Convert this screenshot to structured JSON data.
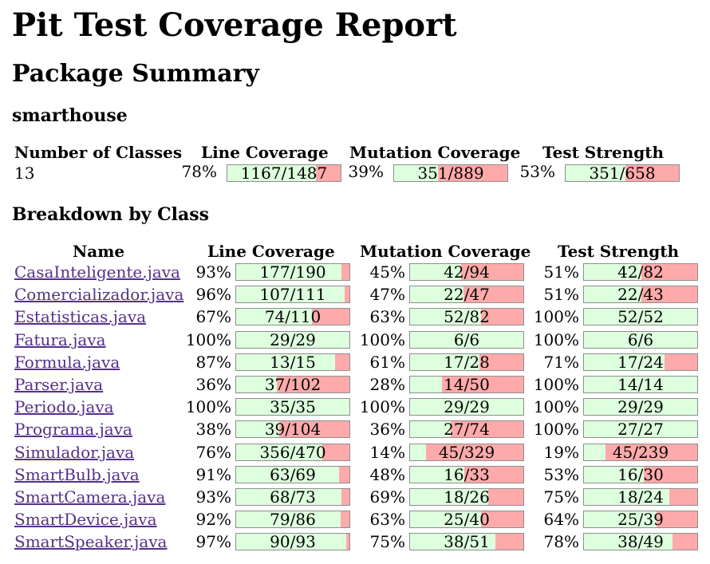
{
  "report_title": "Pit Test Coverage Report",
  "summary_title": "Package Summary",
  "package_name": "smarthouse",
  "breakdown_title": "Breakdown by Class",
  "summary": {
    "headers": {
      "classes": "Number of Classes",
      "line": "Line Coverage",
      "mutation": "Mutation Coverage",
      "strength": "Test Strength"
    },
    "classes": "13",
    "line": {
      "pct": "78%",
      "label": "1167/1487",
      "fraction": 0.78
    },
    "mutation": {
      "pct": "39%",
      "label": "351/889",
      "fraction": 0.39
    },
    "strength": {
      "pct": "53%",
      "label": "351/658",
      "fraction": 0.53
    }
  },
  "breakdown": {
    "headers": {
      "name": "Name",
      "line": "Line Coverage",
      "mutation": "Mutation Coverage",
      "strength": "Test Strength"
    },
    "rows": [
      {
        "name": "CasaInteligente.java",
        "line": {
          "pct": "93%",
          "label": "177/190",
          "fraction": 0.93
        },
        "mutation": {
          "pct": "45%",
          "label": "42/94",
          "fraction": 0.45
        },
        "strength": {
          "pct": "51%",
          "label": "42/82",
          "fraction": 0.51
        }
      },
      {
        "name": "Comercializador.java",
        "line": {
          "pct": "96%",
          "label": "107/111",
          "fraction": 0.96
        },
        "mutation": {
          "pct": "47%",
          "label": "22/47",
          "fraction": 0.47
        },
        "strength": {
          "pct": "51%",
          "label": "22/43",
          "fraction": 0.51
        }
      },
      {
        "name": "Estatisticas.java",
        "line": {
          "pct": "67%",
          "label": "74/110",
          "fraction": 0.67
        },
        "mutation": {
          "pct": "63%",
          "label": "52/82",
          "fraction": 0.63
        },
        "strength": {
          "pct": "100%",
          "label": "52/52",
          "fraction": 1.0
        }
      },
      {
        "name": "Fatura.java",
        "line": {
          "pct": "100%",
          "label": "29/29",
          "fraction": 1.0
        },
        "mutation": {
          "pct": "100%",
          "label": "6/6",
          "fraction": 1.0
        },
        "strength": {
          "pct": "100%",
          "label": "6/6",
          "fraction": 1.0
        }
      },
      {
        "name": "Formula.java",
        "line": {
          "pct": "87%",
          "label": "13/15",
          "fraction": 0.87
        },
        "mutation": {
          "pct": "61%",
          "label": "17/28",
          "fraction": 0.61
        },
        "strength": {
          "pct": "71%",
          "label": "17/24",
          "fraction": 0.71
        }
      },
      {
        "name": "Parser.java",
        "line": {
          "pct": "36%",
          "label": "37/102",
          "fraction": 0.36
        },
        "mutation": {
          "pct": "28%",
          "label": "14/50",
          "fraction": 0.28
        },
        "strength": {
          "pct": "100%",
          "label": "14/14",
          "fraction": 1.0
        }
      },
      {
        "name": "Periodo.java",
        "line": {
          "pct": "100%",
          "label": "35/35",
          "fraction": 1.0
        },
        "mutation": {
          "pct": "100%",
          "label": "29/29",
          "fraction": 1.0
        },
        "strength": {
          "pct": "100%",
          "label": "29/29",
          "fraction": 1.0
        }
      },
      {
        "name": "Programa.java",
        "line": {
          "pct": "38%",
          "label": "39/104",
          "fraction": 0.38
        },
        "mutation": {
          "pct": "36%",
          "label": "27/74",
          "fraction": 0.36
        },
        "strength": {
          "pct": "100%",
          "label": "27/27",
          "fraction": 1.0
        }
      },
      {
        "name": "Simulador.java",
        "line": {
          "pct": "76%",
          "label": "356/470",
          "fraction": 0.76
        },
        "mutation": {
          "pct": "14%",
          "label": "45/329",
          "fraction": 0.14
        },
        "strength": {
          "pct": "19%",
          "label": "45/239",
          "fraction": 0.19
        }
      },
      {
        "name": "SmartBulb.java",
        "line": {
          "pct": "91%",
          "label": "63/69",
          "fraction": 0.91
        },
        "mutation": {
          "pct": "48%",
          "label": "16/33",
          "fraction": 0.48
        },
        "strength": {
          "pct": "53%",
          "label": "16/30",
          "fraction": 0.53
        }
      },
      {
        "name": "SmartCamera.java",
        "line": {
          "pct": "93%",
          "label": "68/73",
          "fraction": 0.93
        },
        "mutation": {
          "pct": "69%",
          "label": "18/26",
          "fraction": 0.69
        },
        "strength": {
          "pct": "75%",
          "label": "18/24",
          "fraction": 0.75
        }
      },
      {
        "name": "SmartDevice.java",
        "line": {
          "pct": "92%",
          "label": "79/86",
          "fraction": 0.92
        },
        "mutation": {
          "pct": "63%",
          "label": "25/40",
          "fraction": 0.63
        },
        "strength": {
          "pct": "64%",
          "label": "25/39",
          "fraction": 0.64
        }
      },
      {
        "name": "SmartSpeaker.java",
        "line": {
          "pct": "97%",
          "label": "90/93",
          "fraction": 0.97
        },
        "mutation": {
          "pct": "75%",
          "label": "38/51",
          "fraction": 0.75
        },
        "strength": {
          "pct": "78%",
          "label": "38/49",
          "fraction": 0.78
        }
      }
    ]
  },
  "colors": {
    "covered": "#ddffdd",
    "uncovered": "#ffaaaa",
    "bar_border": "#8e8e8e",
    "link": "#55308a"
  }
}
